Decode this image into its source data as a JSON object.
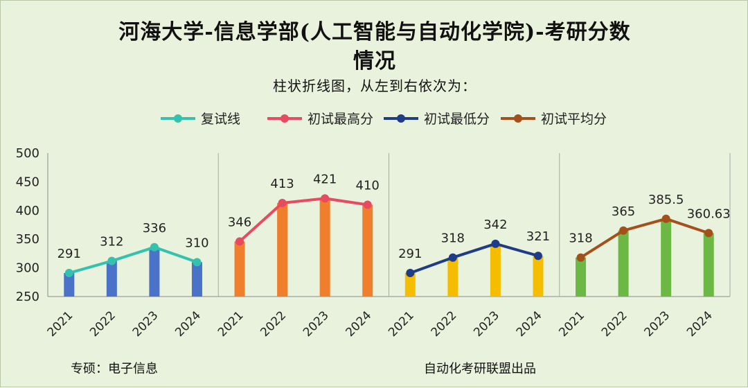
{
  "header": {
    "title_line1": "河海大学-信息学部(人工智能与自动化学院)-考研分数",
    "title_line2": "情况",
    "subtitle": "柱状折线图，从左到右依次为："
  },
  "footer": {
    "major": "专硕：电子信息",
    "credit": "自动化考研联盟出品"
  },
  "chart_data": {
    "type": "bar",
    "ylim": [
      250,
      500
    ],
    "yticks": [
      250,
      300,
      350,
      400,
      450,
      500
    ],
    "categories": [
      "2021",
      "2022",
      "2023",
      "2024"
    ],
    "legend_position": "top",
    "series": [
      {
        "name": "复试线",
        "values": [
          291,
          312,
          336,
          310
        ],
        "labels": [
          "291",
          "312",
          "336",
          "310"
        ],
        "bar_color": "#4a72c9",
        "line_color": "#33c2ae"
      },
      {
        "name": "初试最高分",
        "values": [
          346,
          413,
          421,
          410
        ],
        "labels": [
          "346",
          "413",
          "421",
          "410"
        ],
        "bar_color": "#f07f2d",
        "line_color": "#e84a60"
      },
      {
        "name": "初试最低分",
        "values": [
          291,
          318,
          342,
          321
        ],
        "labels": [
          "291",
          "318",
          "342",
          "321"
        ],
        "bar_color": "#f5bd00",
        "line_color": "#1f3c88"
      },
      {
        "name": "初试平均分",
        "values": [
          318,
          365,
          385.5,
          360.63
        ],
        "labels": [
          "318",
          "365",
          "385.5",
          "360.63"
        ],
        "bar_color": "#6cb844",
        "line_color": "#a5501a"
      }
    ]
  }
}
